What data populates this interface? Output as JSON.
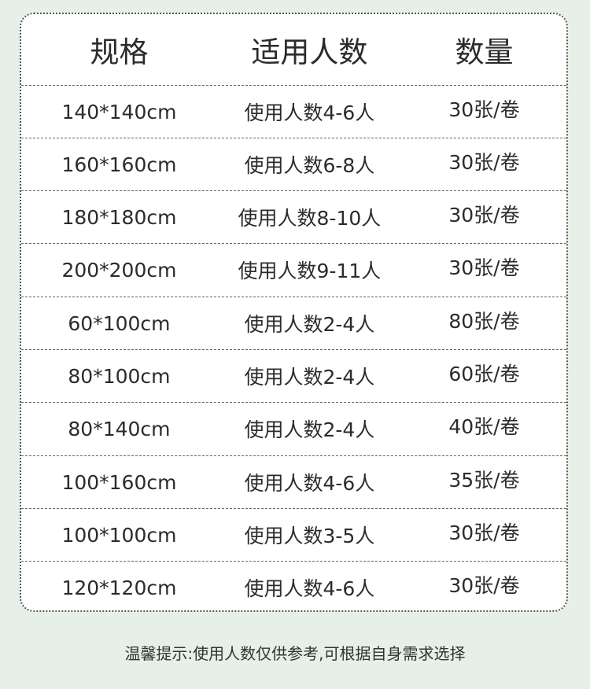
{
  "table": {
    "headers": [
      "规格",
      "适用人数",
      "数量"
    ],
    "rows": [
      [
        "140*140cm",
        "使用人数4-6人",
        "30张/卷"
      ],
      [
        "160*160cm",
        "使用人数6-8人",
        "30张/卷"
      ],
      [
        "180*180cm",
        "使用人数8-10人",
        "30张/卷"
      ],
      [
        "200*200cm",
        "使用人数9-11人",
        "30张/卷"
      ],
      [
        "60*100cm",
        "使用人数2-4人",
        "80张/卷"
      ],
      [
        "80*100cm",
        "使用人数2-4人",
        "60张/卷"
      ],
      [
        "80*140cm",
        "使用人数2-4人",
        "40张/卷"
      ],
      [
        "100*160cm",
        "使用人数4-6人",
        "35张/卷"
      ],
      [
        "100*100cm",
        "使用人数3-5人",
        "30张/卷"
      ],
      [
        "120*120cm",
        "使用人数4-6人",
        "30张/卷"
      ]
    ]
  },
  "footer_tip": "温馨提示:使用人数仅供参考,可根据自身需求选择",
  "colors": {
    "background": "#e6f0e8",
    "card": "#ffffff",
    "text": "#2b2b2b"
  }
}
